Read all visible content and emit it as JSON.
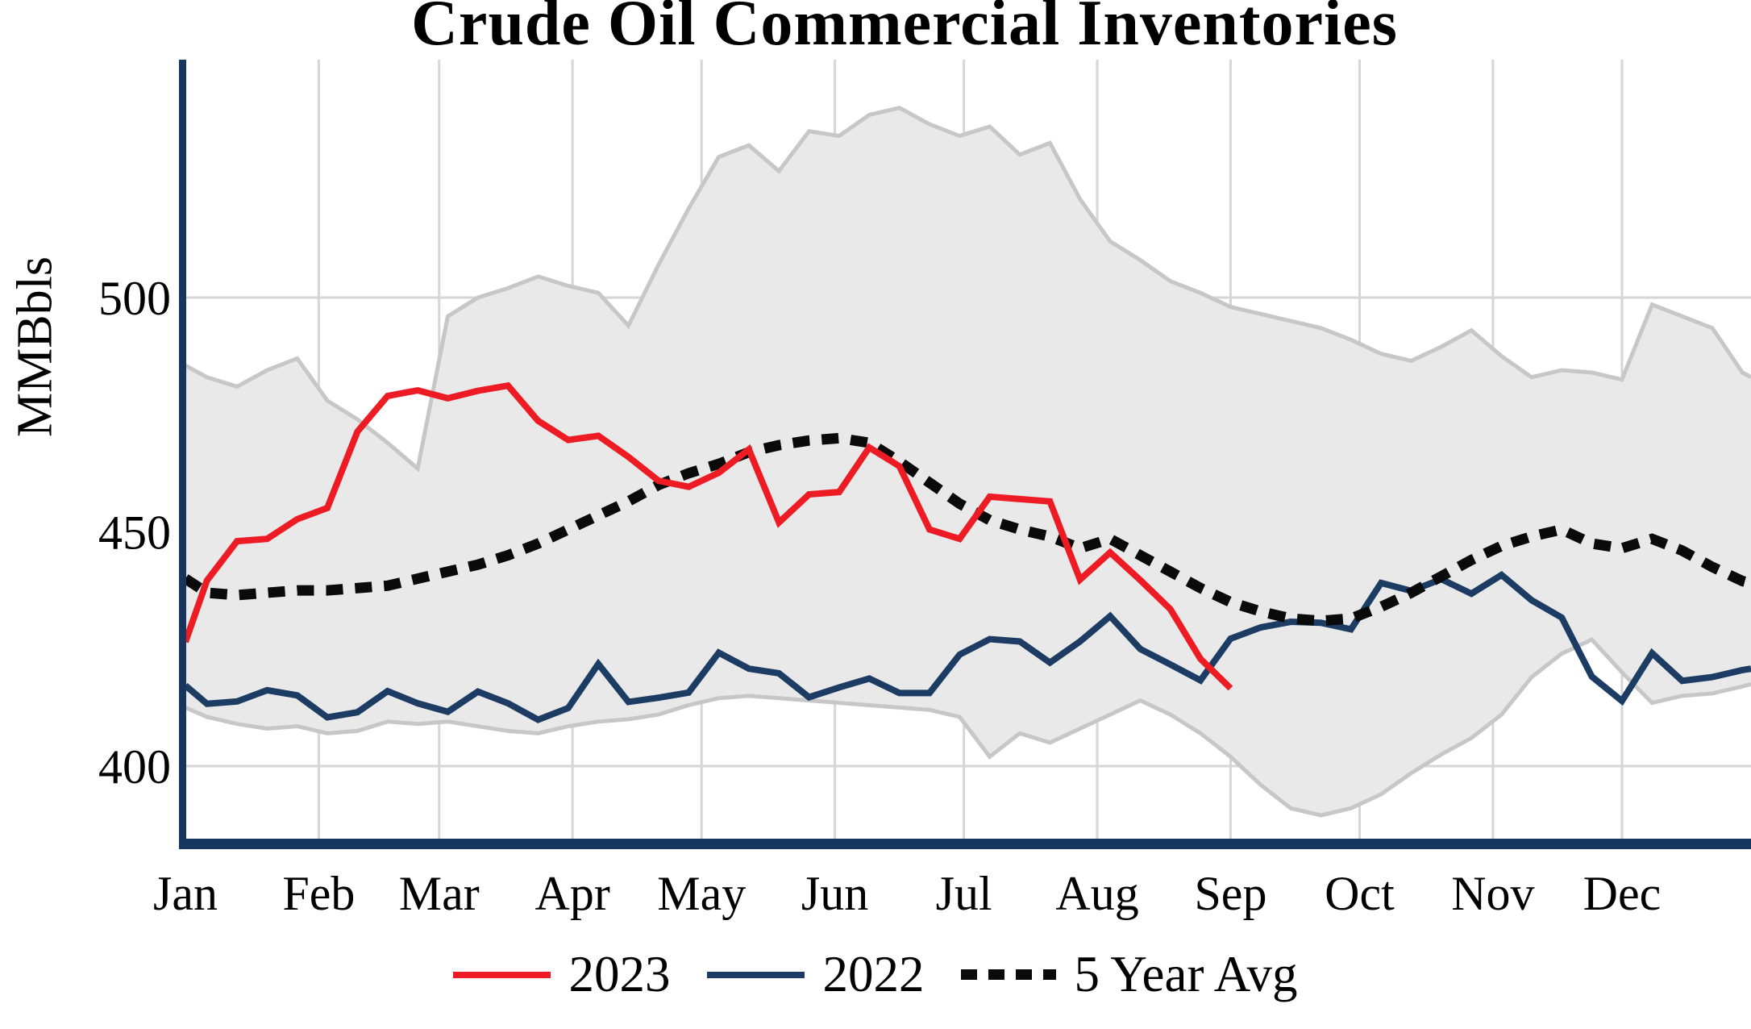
{
  "title": "Crude Oil Commercial Inventories",
  "y_axis": {
    "label": "MMBbls",
    "ticks": [
      500,
      450,
      400
    ]
  },
  "x_axis": {
    "months": [
      {
        "label": "Jan",
        "day": 1
      },
      {
        "label": "Feb",
        "day": 32
      },
      {
        "label": "Mar",
        "day": 60
      },
      {
        "label": "Apr",
        "day": 91
      },
      {
        "label": "May",
        "day": 121
      },
      {
        "label": "Jun",
        "day": 152
      },
      {
        "label": "Jul",
        "day": 182
      },
      {
        "label": "Aug",
        "day": 213
      },
      {
        "label": "Sep",
        "day": 244
      },
      {
        "label": "Oct",
        "day": 274
      },
      {
        "label": "Nov",
        "day": 305
      },
      {
        "label": "Dec",
        "day": 335
      }
    ]
  },
  "legend": [
    {
      "label": "2023",
      "color": "#ed1c24",
      "style": "solid"
    },
    {
      "label": "2022",
      "color": "#1c3c63",
      "style": "solid"
    },
    {
      "label": "5 Year Avg",
      "color": "#0a0a0a",
      "style": "dashed"
    }
  ],
  "colors": {
    "grid": "#d6d6d6",
    "axis": "#17365d",
    "band_fill": "#e9e9e9",
    "band_edge": "#c7c7c7",
    "series_2023": "#ed1c24",
    "series_2022": "#1c3c63",
    "series_avg": "#0a0a0a"
  },
  "chart_data": {
    "type": "line",
    "title": "Crude Oil Commercial Inventories",
    "xlabel": "",
    "ylabel": "MMBbls",
    "x_unit": "day_of_year",
    "xlim": [
      1,
      365
    ],
    "ylim": [
      383,
      550
    ],
    "yticks": [
      400,
      450,
      500
    ],
    "grid": true,
    "legend_position": "bottom",
    "series": [
      {
        "name": "2023",
        "color": "#ed1c24",
        "style": "solid",
        "width": 8,
        "x": [
          1,
          6,
          13,
          20,
          27,
          34,
          41,
          48,
          55,
          62,
          69,
          76,
          83,
          90,
          97,
          104,
          111,
          118,
          125,
          132,
          139,
          146,
          153,
          160,
          167,
          174,
          181,
          188,
          195,
          202,
          209,
          216,
          223,
          230,
          237,
          244
        ],
        "values": [
          426.5,
          439.6,
          448,
          448.5,
          452.7,
          455.1,
          471.4,
          479,
          480.2,
          478.5,
          480.1,
          481.2,
          473.7,
          469.6,
          470.5,
          466,
          460.9,
          459.6,
          462.6,
          467.6,
          452,
          458,
          458.5,
          468,
          464,
          450.5,
          448.5,
          457.5,
          457,
          456.5,
          439.8,
          445.6,
          439.7,
          433.5,
          422.9,
          416.6
        ]
      },
      {
        "name": "2022",
        "color": "#1c3c63",
        "style": "solid",
        "width": 8,
        "x": [
          1,
          6,
          13,
          20,
          27,
          34,
          41,
          48,
          55,
          62,
          69,
          76,
          83,
          90,
          97,
          104,
          111,
          118,
          125,
          132,
          139,
          146,
          153,
          160,
          167,
          174,
          181,
          188,
          195,
          202,
          209,
          216,
          223,
          230,
          237,
          244,
          251,
          258,
          265,
          272,
          279,
          286,
          293,
          300,
          307,
          314,
          321,
          328,
          335,
          342,
          349,
          356,
          363,
          365
        ],
        "values": [
          417.2,
          413.3,
          413.8,
          416.2,
          415.1,
          410.4,
          411.5,
          416,
          413.4,
          411.6,
          415.9,
          413.4,
          409.9,
          412.4,
          421.8,
          413.7,
          414.6,
          415.7,
          424.2,
          420.8,
          419.8,
          414.7,
          416.8,
          418.7,
          415.6,
          415.6,
          423.8,
          427.1,
          426.6,
          422.1,
          426.6,
          432,
          425,
          421.7,
          418.3,
          427.2,
          429.6,
          430.8,
          430.6,
          429.2,
          439.1,
          437.4,
          439.9,
          436.8,
          440.8,
          435.4,
          431.7,
          419.1,
          413.9,
          424.1,
          418.2,
          419,
          420.5,
          420.8
        ]
      },
      {
        "name": "5 Year Avg",
        "color": "#0a0a0a",
        "style": "dashed",
        "width": 13,
        "x": [
          1,
          6,
          13,
          20,
          27,
          34,
          41,
          48,
          55,
          62,
          69,
          76,
          83,
          90,
          97,
          104,
          111,
          118,
          125,
          132,
          139,
          146,
          153,
          160,
          167,
          174,
          181,
          188,
          195,
          202,
          209,
          216,
          223,
          230,
          237,
          244,
          251,
          258,
          265,
          272,
          279,
          286,
          293,
          300,
          307,
          314,
          321,
          328,
          335,
          342,
          349,
          356,
          363,
          365
        ],
        "values": [
          440,
          437,
          436.5,
          437,
          437.5,
          437.5,
          438,
          438.5,
          440,
          441.5,
          443,
          445,
          447.5,
          450.5,
          453.5,
          456.5,
          460,
          462.5,
          464.5,
          467,
          468.5,
          469.5,
          470,
          469,
          465,
          460.5,
          456,
          452.5,
          450.5,
          449,
          446.5,
          448.5,
          445,
          441.5,
          438,
          435,
          433,
          431.5,
          431,
          431.5,
          434,
          437,
          440.5,
          444,
          447,
          449,
          450.5,
          447.5,
          446.5,
          448.5,
          446,
          442.5,
          439.5,
          439
        ]
      }
    ],
    "band": {
      "description": "5-year min-max range (shaded)",
      "fill": "#e9e9e9",
      "edge": "#c7c7c7",
      "x": [
        1,
        6,
        13,
        20,
        27,
        34,
        41,
        48,
        55,
        62,
        69,
        76,
        83,
        90,
        97,
        104,
        111,
        118,
        125,
        132,
        139,
        146,
        153,
        160,
        167,
        174,
        181,
        188,
        195,
        202,
        209,
        216,
        223,
        230,
        237,
        244,
        251,
        258,
        265,
        272,
        279,
        286,
        293,
        300,
        307,
        314,
        321,
        328,
        335,
        342,
        349,
        356,
        363,
        365
      ],
      "upper": [
        485.5,
        483,
        481,
        484.5,
        487,
        478,
        474,
        469,
        463.5,
        496,
        500,
        502,
        504.5,
        502.5,
        501,
        494,
        507,
        519,
        530,
        532.5,
        527,
        535.5,
        534.5,
        539,
        540.5,
        537,
        534.5,
        536.5,
        530.5,
        533,
        521,
        512,
        508,
        503.5,
        501,
        498,
        496.5,
        495,
        493.5,
        491,
        488,
        486.5,
        489.5,
        493,
        487.5,
        483,
        484.5,
        484,
        482.5,
        498.5,
        496,
        493.5,
        484,
        483
      ],
      "lower": [
        412.5,
        410.5,
        409,
        408,
        408.5,
        407,
        407.5,
        409.5,
        409,
        409.5,
        408.5,
        407.5,
        407,
        408.5,
        409.5,
        410,
        411,
        413,
        414.5,
        415,
        414.5,
        414,
        413.5,
        413,
        412.5,
        412,
        410.5,
        402,
        407,
        405,
        408,
        411,
        414,
        411,
        407,
        402,
        396,
        391,
        389.5,
        391,
        394,
        398.5,
        402.5,
        406,
        411,
        419,
        424,
        427,
        420,
        413.5,
        415,
        415.5,
        417,
        417.5
      ]
    }
  }
}
